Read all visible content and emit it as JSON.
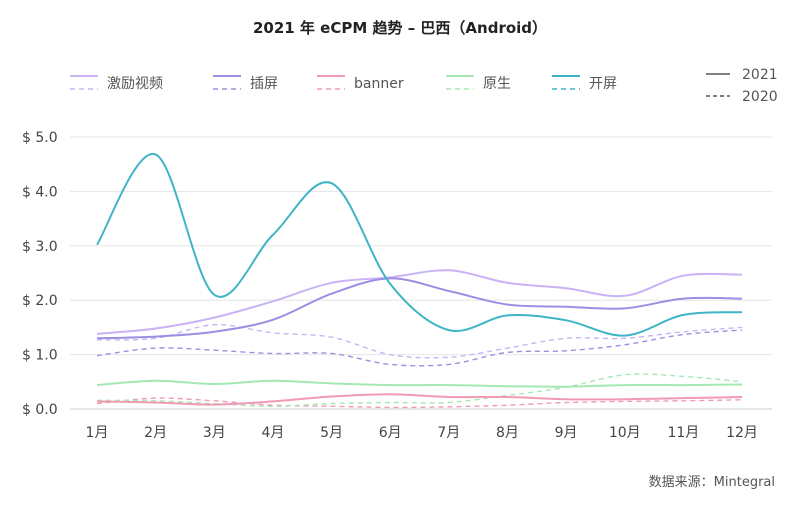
{
  "chart_data": {
    "type": "line",
    "title": "2021 年 eCPM 趋势 – 巴西（Android）",
    "xlabel": "",
    "ylabel": "",
    "categories": [
      "1月",
      "2月",
      "3月",
      "4月",
      "5月",
      "6月",
      "7月",
      "8月",
      "9月",
      "10月",
      "11月",
      "12月"
    ],
    "ylim": [
      0,
      5
    ],
    "yticks": [
      "$ 0.0",
      "$ 1.0",
      "$ 2.0",
      "$ 3.0",
      "$ 4.0",
      "$ 5.0"
    ],
    "grid": "horizontal",
    "legend_placement": "top",
    "year_legend": [
      {
        "label": "2021",
        "style": "solid"
      },
      {
        "label": "2020",
        "style": "dashed"
      }
    ],
    "series": [
      {
        "name": "激励视频",
        "color": "#c9b3f5",
        "values_2021": [
          1.38,
          1.48,
          1.68,
          1.98,
          2.32,
          2.42,
          2.55,
          2.32,
          2.22,
          2.08,
          2.45,
          2.47
        ],
        "values_2020": [
          1.27,
          1.3,
          1.55,
          1.4,
          1.32,
          1.0,
          0.95,
          1.12,
          1.3,
          1.3,
          1.42,
          1.5
        ]
      },
      {
        "name": "插屏",
        "color": "#9c8fe3",
        "values_2021": [
          1.3,
          1.33,
          1.42,
          1.64,
          2.12,
          2.4,
          2.17,
          1.92,
          1.88,
          1.85,
          2.03,
          2.03
        ],
        "values_2020": [
          0.98,
          1.12,
          1.08,
          1.02,
          1.02,
          0.82,
          0.82,
          1.04,
          1.07,
          1.18,
          1.37,
          1.45
        ]
      },
      {
        "name": "banner",
        "color": "#f09ab4",
        "values_2021": [
          0.14,
          0.12,
          0.08,
          0.14,
          0.23,
          0.27,
          0.22,
          0.22,
          0.18,
          0.18,
          0.2,
          0.22
        ],
        "values_2020": [
          0.1,
          0.2,
          0.15,
          0.07,
          0.05,
          0.03,
          0.04,
          0.07,
          0.12,
          0.14,
          0.15,
          0.17
        ]
      },
      {
        "name": "原生",
        "color": "#a6e8b4",
        "values_2021": [
          0.44,
          0.52,
          0.46,
          0.52,
          0.47,
          0.44,
          0.44,
          0.42,
          0.41,
          0.44,
          0.44,
          0.45
        ],
        "values_2020": [
          0.16,
          0.15,
          0.1,
          0.05,
          0.1,
          0.12,
          0.12,
          0.25,
          0.4,
          0.63,
          0.6,
          0.5
        ]
      },
      {
        "name": "开屏",
        "color": "#3fb4c6",
        "values_2021": [
          3.02,
          4.68,
          2.1,
          3.2,
          4.15,
          2.3,
          1.45,
          1.72,
          1.63,
          1.35,
          1.73,
          1.78
        ],
        "values_2020": []
      }
    ],
    "source": "数据来源：Mintegral"
  }
}
